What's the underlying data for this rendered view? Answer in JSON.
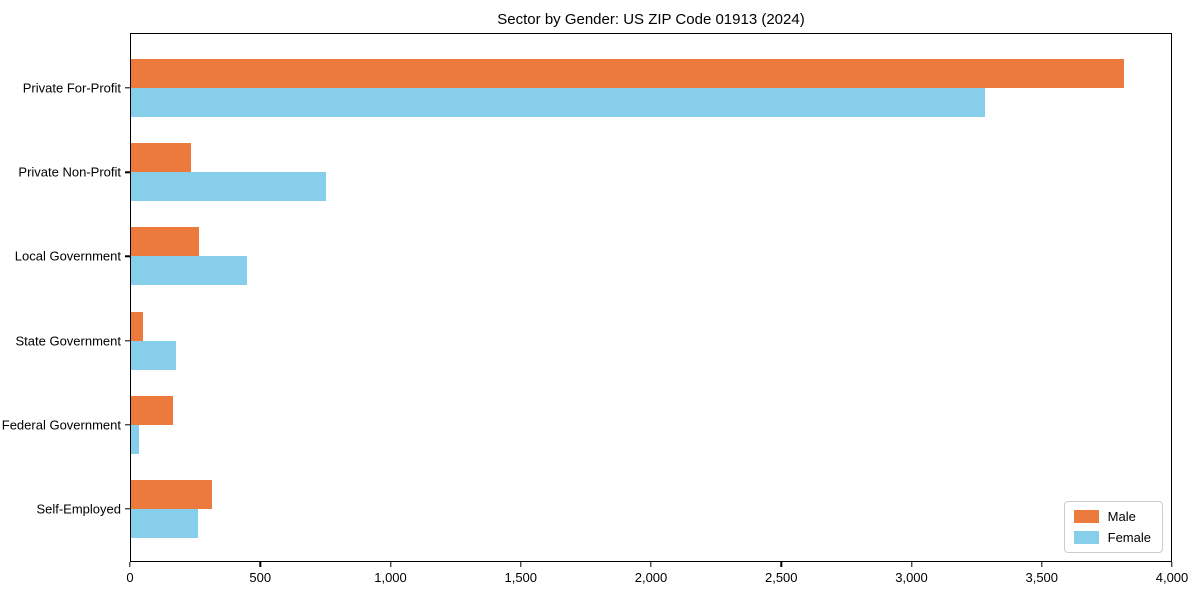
{
  "title": "Sector by Gender: US ZIP Code 01913 (2024)",
  "chart_data": {
    "type": "bar",
    "orientation": "horizontal",
    "title": "Sector by Gender: US ZIP Code 01913 (2024)",
    "categories": [
      "Private For-Profit",
      "Private Non-Profit",
      "Local Government",
      "State Government",
      "Federal Government",
      "Self-Employed"
    ],
    "series": [
      {
        "name": "Male",
        "color": "#EC7A3D",
        "values": [
          3820,
          230,
          260,
          48,
          160,
          310
        ]
      },
      {
        "name": "Female",
        "color": "#87CEEB",
        "values": [
          3285,
          750,
          445,
          172,
          30,
          257
        ]
      }
    ],
    "xlim": [
      0,
      4000
    ],
    "x_ticks": [
      0,
      500,
      1000,
      1500,
      2000,
      2500,
      3000,
      3500,
      4000
    ],
    "x_tick_labels": [
      "0",
      "500",
      "1,000",
      "1,500",
      "2,000",
      "2,500",
      "3,000",
      "3,500",
      "4,000"
    ],
    "xlabel": "",
    "ylabel": "",
    "grid": false,
    "legend_position": "lower right",
    "colors": {
      "male": "#EC7A3D",
      "female": "#87CEEB",
      "spine": "#000000",
      "legend_border": "#CCCCCC"
    }
  }
}
